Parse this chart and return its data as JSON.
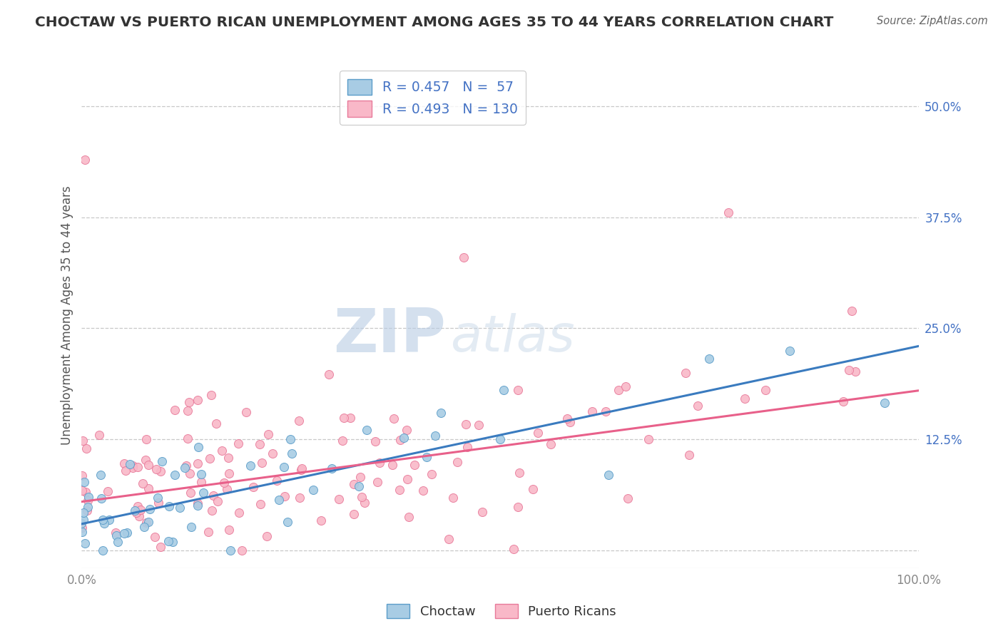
{
  "title": "CHOCTAW VS PUERTO RICAN UNEMPLOYMENT AMONG AGES 35 TO 44 YEARS CORRELATION CHART",
  "source": "Source: ZipAtlas.com",
  "ylabel": "Unemployment Among Ages 35 to 44 years",
  "xlim": [
    0.0,
    1.0
  ],
  "ylim": [
    -0.02,
    0.55
  ],
  "ytick_positions": [
    0.0,
    0.125,
    0.25,
    0.375,
    0.5
  ],
  "ytick_labels": [
    "",
    "12.5%",
    "25.0%",
    "37.5%",
    "50.0%"
  ],
  "choctaw_color": "#a8cce4",
  "choctaw_edge": "#5b9dc9",
  "pr_color": "#f9b8c8",
  "pr_edge": "#e87a9a",
  "line_choctaw_color": "#3a7bbf",
  "line_pr_color": "#e8608a",
  "choctaw_R": 0.457,
  "choctaw_N": 57,
  "pr_R": 0.493,
  "pr_N": 130,
  "legend_label_choctaw": "Choctaw",
  "legend_label_pr": "Puerto Ricans",
  "background_color": "#ffffff",
  "grid_color": "#c8c8c8",
  "title_color": "#333333",
  "choctaw_intercept": 0.03,
  "choctaw_slope": 0.2,
  "pr_intercept": 0.055,
  "pr_slope": 0.125,
  "tick_label_color": "#4472c4",
  "axis_tick_color": "#888888"
}
